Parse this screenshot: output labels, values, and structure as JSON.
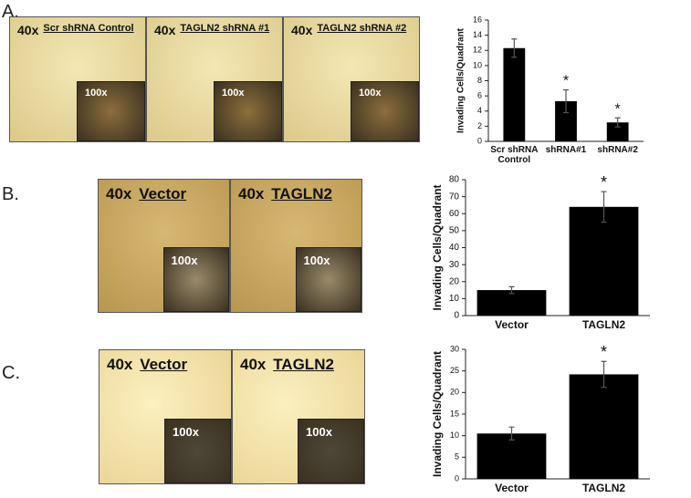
{
  "panels": [
    {
      "label": "A.",
      "images": [
        {
          "magnification": "40x",
          "title": "Scr shRNA Control",
          "inset": "100x"
        },
        {
          "magnification": "40x",
          "title": "TAGLN2 shRNA #1",
          "inset": "100x"
        },
        {
          "magnification": "40x",
          "title": "TAGLN2 shRNA #2",
          "inset": "100x"
        }
      ]
    },
    {
      "label": "B.",
      "images": [
        {
          "magnification": "40x",
          "title": "Vector",
          "inset": "100x"
        },
        {
          "magnification": "40x",
          "title": "TAGLN2",
          "inset": "100x"
        }
      ]
    },
    {
      "label": "C.",
      "images": [
        {
          "magnification": "40x",
          "title": "Vector",
          "inset": "100x"
        },
        {
          "magnification": "40x",
          "title": "TAGLN2",
          "inset": "100x"
        }
      ]
    }
  ],
  "chart_data": [
    {
      "type": "bar",
      "y_label": "Invading Cells/Quadrant",
      "categories": [
        "Scr shRNA Control",
        "shRNA#1",
        "shRNA#2"
      ],
      "series": [
        {
          "color": "#000000",
          "values": [
            12.3,
            5.3,
            2.5
          ],
          "errors": [
            1.2,
            1.5,
            0.6
          ]
        }
      ],
      "annotations": [
        null,
        "*",
        "*"
      ],
      "ylim": [
        0,
        16
      ],
      "yticks": [
        0,
        2,
        4,
        6,
        8,
        10,
        12,
        14,
        16
      ]
    },
    {
      "type": "bar",
      "y_label": "Invading Cells/Quadrant",
      "categories": [
        "Vector",
        "TAGLN2"
      ],
      "series": [
        {
          "color": "#000000",
          "values": [
            15,
            64
          ],
          "errors": [
            2,
            9
          ]
        }
      ],
      "annotations": [
        null,
        "*"
      ],
      "ylim": [
        0,
        80
      ],
      "yticks": [
        0,
        10,
        20,
        30,
        40,
        50,
        60,
        70,
        80
      ]
    },
    {
      "type": "bar",
      "y_label": "Invading Cells/Quadrant",
      "categories": [
        "Vector",
        "TAGLN2"
      ],
      "series": [
        {
          "color": "#000000",
          "values": [
            10.5,
            24.2
          ],
          "errors": [
            1.5,
            3
          ]
        }
      ],
      "annotations": [
        null,
        "*"
      ],
      "ylim": [
        0,
        30
      ],
      "yticks": [
        0,
        5,
        10,
        15,
        20,
        25,
        30
      ]
    }
  ]
}
